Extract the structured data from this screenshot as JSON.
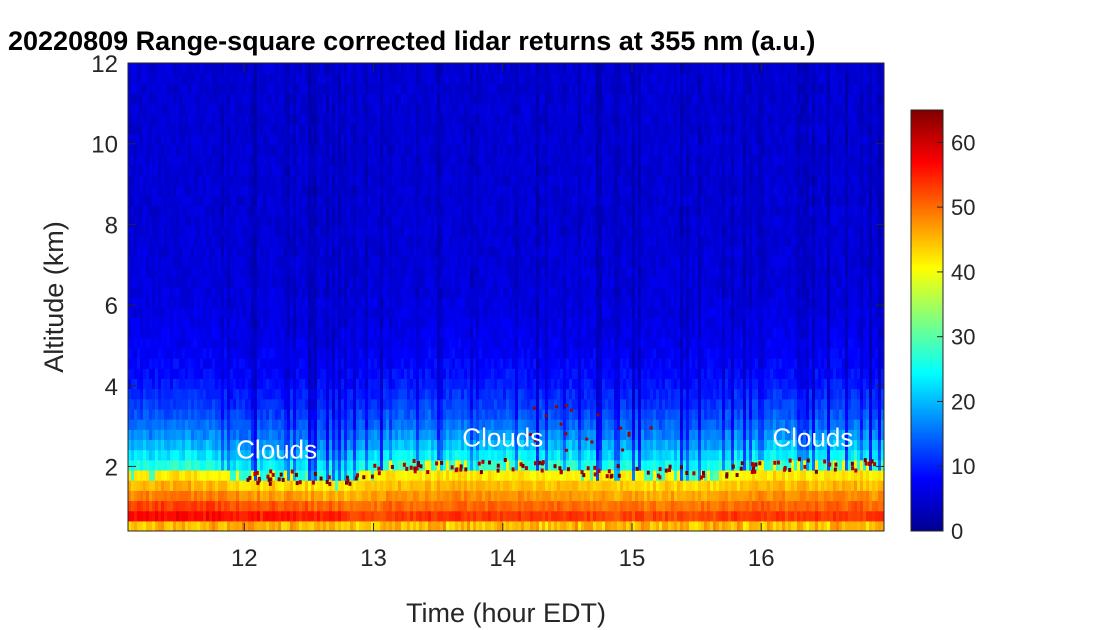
{
  "chart_data": {
    "type": "heatmap",
    "title": "20220809  Range-square corrected lidar returns at 355 nm (a.u.)",
    "xlabel": "Time (hour EDT)",
    "ylabel": "Altitude (km)",
    "xlim": [
      11.1,
      16.95
    ],
    "ylim": [
      0.4,
      12
    ],
    "xticks": [
      12,
      13,
      14,
      15,
      16
    ],
    "yticks": [
      2,
      4,
      6,
      8,
      10,
      12
    ],
    "colorbar": {
      "colormap": "jet",
      "range": [
        0,
        65
      ],
      "ticks": [
        0,
        10,
        20,
        30,
        40,
        50,
        60
      ]
    },
    "annotations": [
      {
        "text": "Clouds",
        "x": 12.25,
        "y": 2.2
      },
      {
        "text": "Clouds",
        "x": 14.0,
        "y": 2.5
      },
      {
        "text": "Clouds",
        "x": 16.4,
        "y": 2.5
      }
    ],
    "features": {
      "boundary_layer_top_km": [
        {
          "x": 11.1,
          "y": 1.8
        },
        {
          "x": 11.5,
          "y": 2.0
        },
        {
          "x": 12.0,
          "y": 1.7
        },
        {
          "x": 12.5,
          "y": 1.7
        },
        {
          "x": 12.8,
          "y": 1.6
        },
        {
          "x": 13.0,
          "y": 1.9
        },
        {
          "x": 13.5,
          "y": 2.0
        },
        {
          "x": 14.0,
          "y": 2.0
        },
        {
          "x": 14.5,
          "y": 1.9
        },
        {
          "x": 15.0,
          "y": 1.8
        },
        {
          "x": 15.5,
          "y": 1.8
        },
        {
          "x": 16.0,
          "y": 2.0
        },
        {
          "x": 16.5,
          "y": 2.0
        },
        {
          "x": 16.95,
          "y": 2.0
        }
      ]
    }
  }
}
